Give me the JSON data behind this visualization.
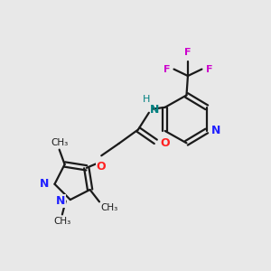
{
  "background_color": "#e8e8e8",
  "bond_color": "#1a1a1a",
  "nitrogen_color": "#2020ff",
  "oxygen_color": "#ff2020",
  "fluorine_color": "#cc00cc",
  "nh_color": "#008080",
  "figsize": [
    3.0,
    3.0
  ],
  "dpi": 100,
  "xlim": [
    0,
    10
  ],
  "ylim": [
    0,
    10
  ]
}
